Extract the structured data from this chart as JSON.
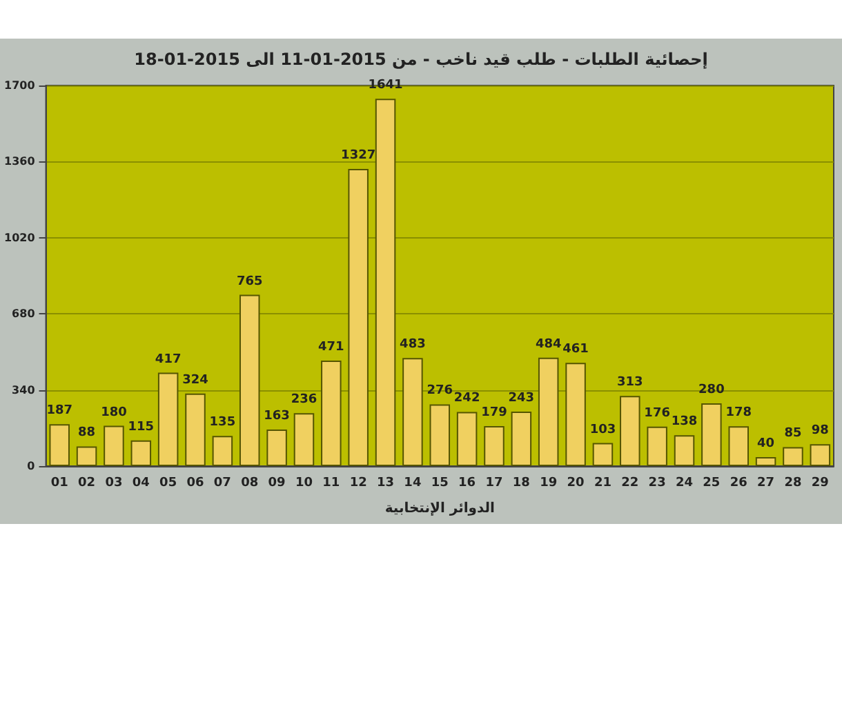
{
  "chart_data": {
    "type": "bar",
    "title": "إحصائية الطلبات - طلب قيد ناخب - من 2015-01-11 الى 2015-01-18",
    "xlabel": "الدوائر الإنتخابية",
    "categories": [
      "01",
      "02",
      "03",
      "04",
      "05",
      "06",
      "07",
      "08",
      "09",
      "10",
      "11",
      "12",
      "13",
      "14",
      "15",
      "16",
      "17",
      "18",
      "19",
      "20",
      "21",
      "22",
      "23",
      "24",
      "25",
      "26",
      "27",
      "28",
      "29"
    ],
    "values": [
      187,
      88,
      180,
      115,
      417,
      324,
      135,
      765,
      163,
      236,
      471,
      1327,
      1641,
      483,
      276,
      242,
      179,
      243,
      484,
      461,
      103,
      313,
      176,
      138,
      280,
      178,
      40,
      85,
      98
    ],
    "color": "#f0d060",
    "ylim": [
      0,
      1700
    ],
    "yticks": [
      0,
      340,
      680,
      1020,
      1360,
      1700
    ],
    "grid": "y",
    "data_labels": true
  }
}
